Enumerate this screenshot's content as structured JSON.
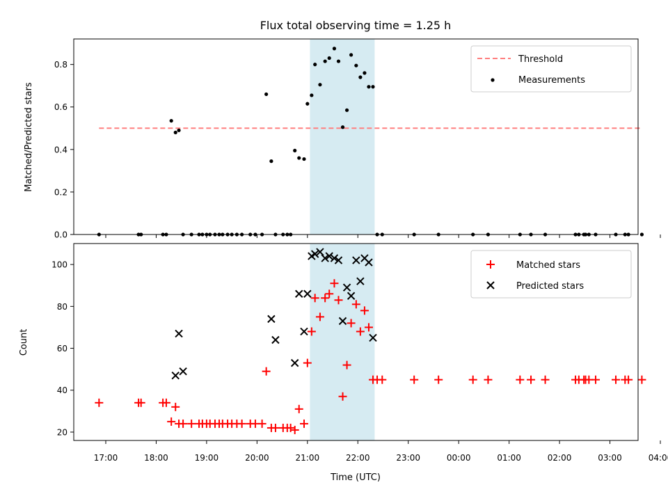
{
  "chart_data": [
    {
      "type": "scatter",
      "title": "Flux total observing time = 1.25 h",
      "xlabel": "",
      "ylabel": "Matched/Predicted stars",
      "ylim": [
        0,
        0.92
      ],
      "yticks": [
        "0.0",
        "0.2",
        "0.4",
        "0.6",
        "0.8"
      ],
      "ytick_values": [
        0,
        0.2,
        0.4,
        0.6,
        0.8
      ],
      "highlight_span": [
        "21:03",
        "22:20"
      ],
      "threshold": {
        "name": "Threshold",
        "value": 0.5,
        "x_range": [
          "16:52",
          "03:38"
        ],
        "color": "#ff7f7f"
      },
      "series": [
        {
          "name": "Measurements",
          "color": "#000000",
          "marker": "dot",
          "x": [
            "16:52",
            "17:39",
            "17:42",
            "18:08",
            "18:12",
            "18:18",
            "18:23",
            "18:27",
            "18:32",
            "18:42",
            "18:51",
            "18:55",
            "19:00",
            "19:04",
            "19:10",
            "19:15",
            "19:19",
            "19:25",
            "19:30",
            "19:36",
            "19:42",
            "19:52",
            "19:58",
            "20:06",
            "20:11",
            "20:17",
            "20:22",
            "20:31",
            "20:36",
            "20:40",
            "20:45",
            "20:50",
            "20:56",
            "21:00",
            "21:05",
            "21:09",
            "21:15",
            "21:21",
            "21:26",
            "21:32",
            "21:37",
            "21:42",
            "21:47",
            "21:52",
            "21:58",
            "22:03",
            "22:08",
            "22:13",
            "22:18",
            "22:23",
            "22:29",
            "23:07",
            "23:36",
            "00:17",
            "00:35",
            "01:13",
            "01:26",
            "01:43",
            "02:19",
            "02:23",
            "02:29",
            "02:31",
            "02:35",
            "02:43",
            "03:07",
            "03:18",
            "03:22",
            "03:38"
          ],
          "y": [
            0,
            0,
            0,
            0,
            0,
            0.535,
            0.48,
            0.49,
            0,
            0,
            0,
            0,
            0,
            0,
            0,
            0,
            0,
            0,
            0,
            0,
            0,
            0,
            0,
            0,
            0.66,
            0.345,
            0,
            0,
            0,
            0,
            0.395,
            0.36,
            0.355,
            0.615,
            0.655,
            0.8,
            0.705,
            0.815,
            0.83,
            0.875,
            0.815,
            0.505,
            0.585,
            0.845,
            0.795,
            0.74,
            0.76,
            0.695,
            0.695,
            0,
            0,
            0,
            0,
            0,
            0,
            0,
            0,
            0,
            0,
            0,
            0,
            0,
            0,
            0,
            0,
            0,
            0,
            0
          ]
        }
      ],
      "legend": {
        "placement": "top-right",
        "entries": [
          "Threshold",
          "Measurements"
        ]
      }
    },
    {
      "type": "scatter",
      "title": "",
      "xlabel": "Time (UTC)",
      "ylabel": "Count",
      "ylim": [
        16,
        110
      ],
      "yticks": [
        "20",
        "40",
        "60",
        "80",
        "100"
      ],
      "ytick_values": [
        20,
        40,
        60,
        80,
        100
      ],
      "xticks": [
        "17:00",
        "18:00",
        "19:00",
        "20:00",
        "21:00",
        "22:00",
        "23:00",
        "00:00",
        "01:00",
        "02:00",
        "03:00",
        "04:00"
      ],
      "highlight_span": [
        "21:03",
        "22:20"
      ],
      "series": [
        {
          "name": "Matched stars",
          "color": "#ff0000",
          "marker": "plus",
          "x": [
            "16:52",
            "17:39",
            "17:42",
            "18:08",
            "18:12",
            "18:18",
            "18:23",
            "18:27",
            "18:32",
            "18:42",
            "18:51",
            "18:55",
            "19:00",
            "19:04",
            "19:10",
            "19:15",
            "19:19",
            "19:25",
            "19:30",
            "19:36",
            "19:42",
            "19:52",
            "19:58",
            "20:06",
            "20:11",
            "20:17",
            "20:22",
            "20:31",
            "20:36",
            "20:40",
            "20:45",
            "20:50",
            "20:56",
            "21:00",
            "21:05",
            "21:09",
            "21:15",
            "21:21",
            "21:26",
            "21:32",
            "21:37",
            "21:42",
            "21:47",
            "21:52",
            "21:58",
            "22:03",
            "22:08",
            "22:13",
            "22:18",
            "22:23",
            "22:29",
            "23:07",
            "23:36",
            "00:17",
            "00:35",
            "01:13",
            "01:26",
            "01:43",
            "02:19",
            "02:23",
            "02:29",
            "02:31",
            "02:35",
            "02:43",
            "03:07",
            "03:18",
            "03:22",
            "03:38"
          ],
          "y": [
            34,
            34,
            34,
            34,
            34,
            25,
            32,
            24,
            24,
            24,
            24,
            24,
            24,
            24,
            24,
            24,
            24,
            24,
            24,
            24,
            24,
            24,
            24,
            24,
            49,
            22,
            22,
            22,
            22,
            22,
            21,
            31,
            24,
            53,
            68,
            84,
            75,
            84,
            86,
            91,
            83,
            37,
            52,
            72,
            81,
            68,
            78,
            70,
            45,
            45,
            45,
            45,
            45,
            45,
            45,
            45,
            45,
            45,
            45,
            45,
            45,
            45,
            45,
            45,
            45,
            45,
            45,
            45
          ]
        },
        {
          "name": "Predicted stars",
          "color": "#000000",
          "marker": "cross",
          "x": [
            "18:23",
            "18:27",
            "18:32",
            "20:17",
            "20:22",
            "20:45",
            "20:50",
            "20:56",
            "21:00",
            "21:05",
            "21:09",
            "21:15",
            "21:21",
            "21:26",
            "21:32",
            "21:37",
            "21:42",
            "21:47",
            "21:52",
            "21:58",
            "22:03",
            "22:08",
            "22:13",
            "22:18"
          ],
          "y": [
            47,
            67,
            49,
            74,
            64,
            53,
            86,
            68,
            86,
            104,
            105,
            106,
            103,
            104,
            103,
            102,
            73,
            89,
            85,
            102,
            92,
            103,
            101,
            65
          ]
        }
      ],
      "legend": {
        "placement": "top-right",
        "entries": [
          "Matched stars",
          "Predicted stars"
        ]
      }
    }
  ]
}
